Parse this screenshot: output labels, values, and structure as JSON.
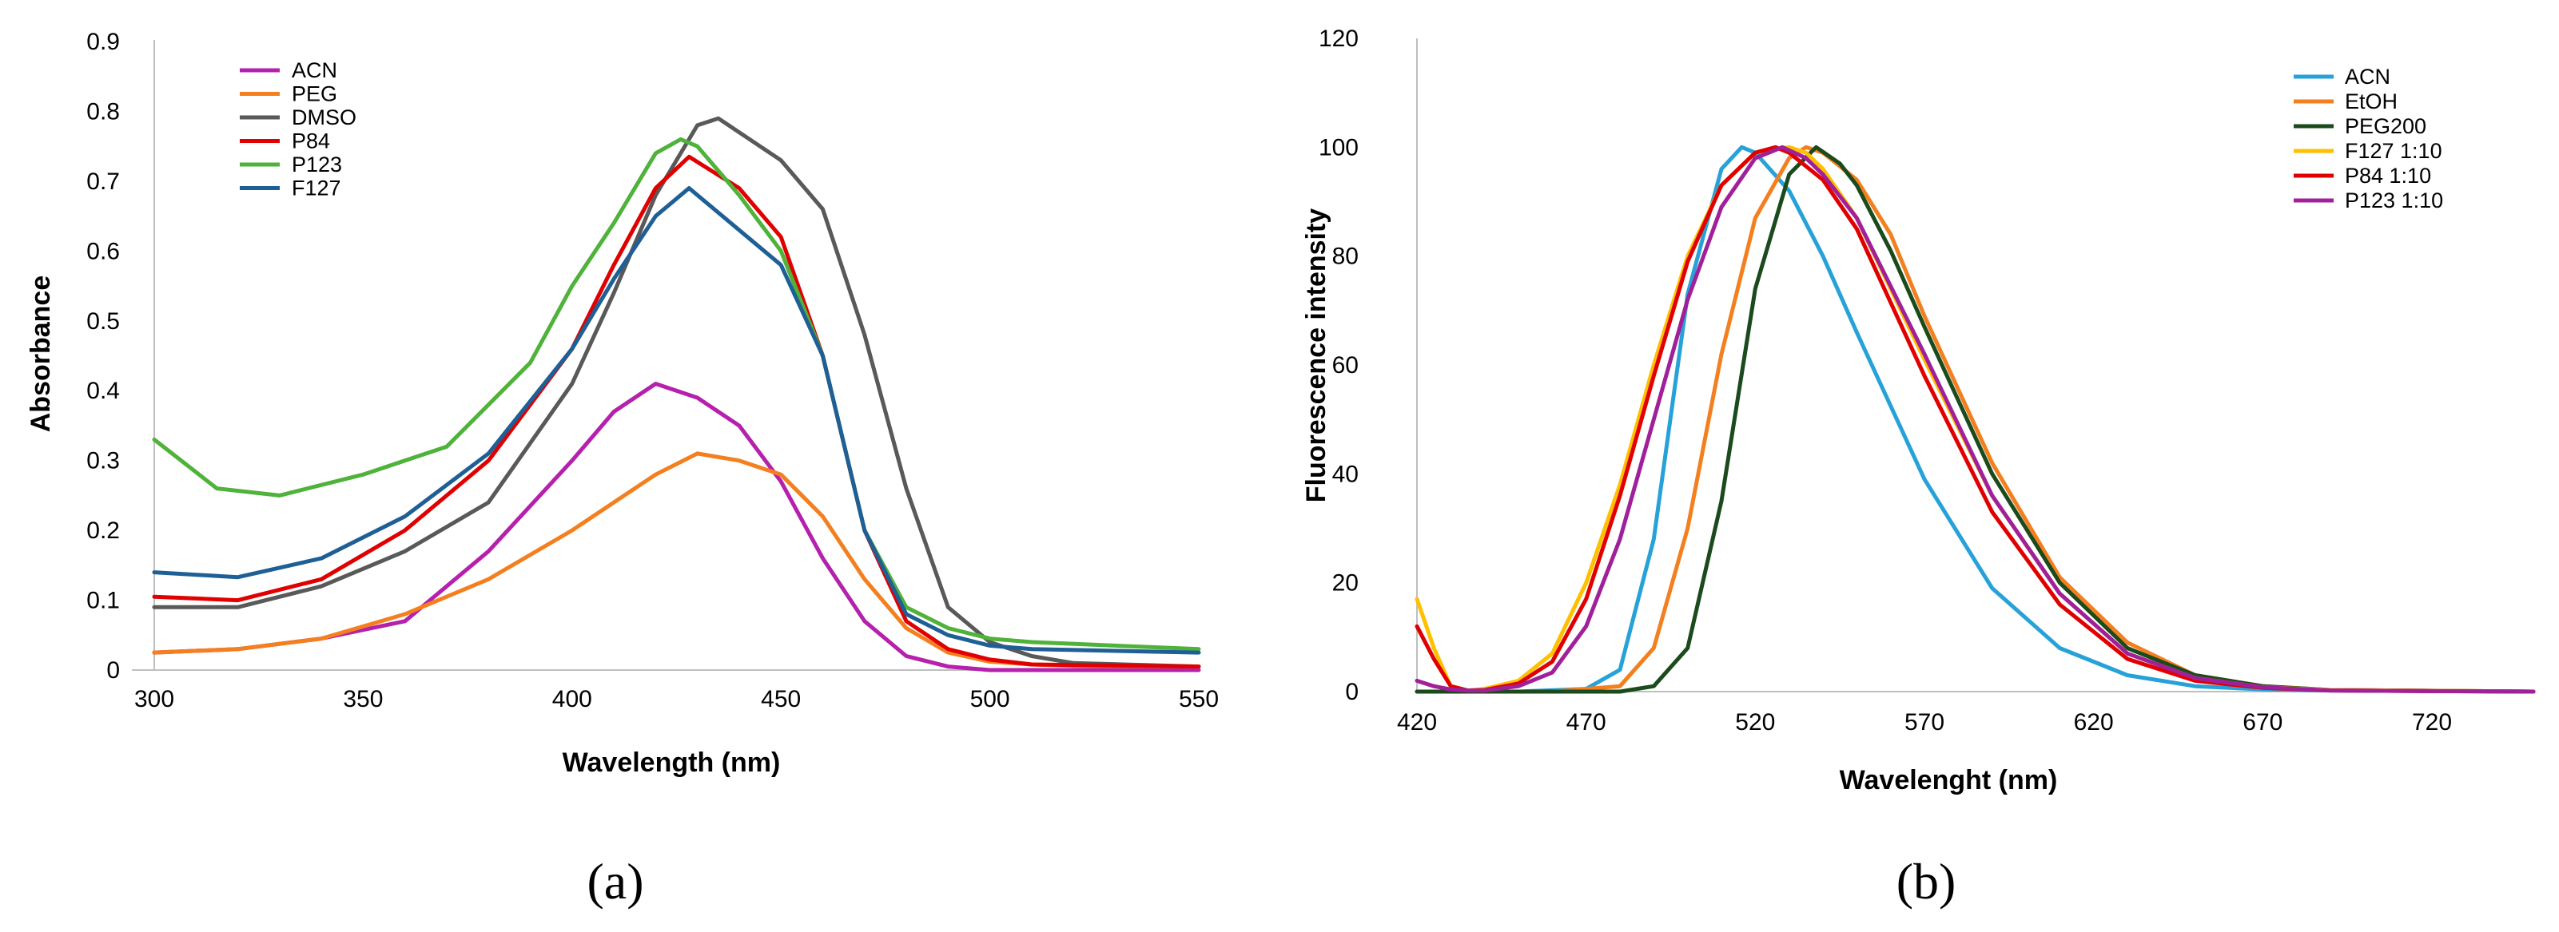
{
  "colors": {
    "purple": "#B520AC",
    "orange": "#F47F1F",
    "gray": "#595959",
    "red": "#E00000",
    "green": "#4FB23A",
    "blue": "#1E5F96",
    "lightblue": "#27A2D9",
    "darkgreen": "#1B4A1C",
    "yellow": "#FFC000",
    "magenta": "#A0209A"
  },
  "chart_data": [
    {
      "type": "line",
      "panel_label": "(a)",
      "title": "",
      "xlabel": "Wavelength (nm)",
      "ylabel": "Absorbance",
      "xlim": [
        300,
        550
      ],
      "ylim": [
        0,
        0.9
      ],
      "xticks": [
        300,
        350,
        400,
        450,
        500,
        550
      ],
      "yticks": [
        0,
        0.1,
        0.2,
        0.3,
        0.4,
        0.5,
        0.6,
        0.7,
        0.8,
        0.9
      ],
      "xtick_labels": [
        "300",
        "350",
        "400",
        "450",
        "500",
        "550"
      ],
      "ytick_labels": [
        "0",
        "0.1",
        "0.2",
        "0.3",
        "0.4",
        "0.5",
        "0.6",
        "0.7",
        "0.8",
        "0.9"
      ],
      "legend_position": "top-left",
      "series": [
        {
          "name": "ACN",
          "color": "#B520AC",
          "x": [
            300,
            320,
            340,
            360,
            380,
            400,
            410,
            420,
            430,
            440,
            450,
            460,
            470,
            480,
            490,
            500,
            510,
            550
          ],
          "y": [
            0.025,
            0.03,
            0.045,
            0.07,
            0.17,
            0.3,
            0.37,
            0.41,
            0.39,
            0.35,
            0.27,
            0.16,
            0.07,
            0.02,
            0.005,
            0.0,
            0.0,
            0.0
          ]
        },
        {
          "name": "PEG",
          "color": "#F47F1F",
          "x": [
            300,
            320,
            340,
            360,
            380,
            400,
            410,
            420,
            430,
            440,
            450,
            460,
            470,
            480,
            490,
            500,
            510,
            520,
            550
          ],
          "y": [
            0.025,
            0.03,
            0.045,
            0.08,
            0.13,
            0.2,
            0.24,
            0.28,
            0.31,
            0.3,
            0.28,
            0.22,
            0.13,
            0.06,
            0.025,
            0.012,
            0.008,
            0.006,
            0.005
          ]
        },
        {
          "name": "DMSO",
          "color": "#595959",
          "x": [
            300,
            320,
            340,
            360,
            380,
            400,
            410,
            420,
            430,
            435,
            440,
            450,
            460,
            470,
            480,
            490,
            500,
            510,
            520,
            550
          ],
          "y": [
            0.09,
            0.09,
            0.12,
            0.17,
            0.24,
            0.41,
            0.54,
            0.68,
            0.78,
            0.79,
            0.77,
            0.73,
            0.66,
            0.48,
            0.26,
            0.09,
            0.04,
            0.02,
            0.01,
            0.005
          ]
        },
        {
          "name": "P84",
          "color": "#E00000",
          "x": [
            300,
            320,
            340,
            360,
            380,
            400,
            410,
            420,
            428,
            440,
            450,
            460,
            470,
            480,
            490,
            500,
            510,
            550
          ],
          "y": [
            0.105,
            0.1,
            0.13,
            0.2,
            0.3,
            0.46,
            0.58,
            0.69,
            0.735,
            0.69,
            0.62,
            0.45,
            0.2,
            0.07,
            0.03,
            0.015,
            0.008,
            0.005
          ]
        },
        {
          "name": "P123",
          "color": "#4FB23A",
          "x": [
            300,
            315,
            330,
            350,
            370,
            390,
            400,
            410,
            420,
            426,
            430,
            440,
            450,
            460,
            470,
            480,
            490,
            500,
            510,
            550
          ],
          "y": [
            0.33,
            0.26,
            0.25,
            0.28,
            0.32,
            0.44,
            0.55,
            0.64,
            0.74,
            0.76,
            0.75,
            0.68,
            0.6,
            0.45,
            0.2,
            0.09,
            0.06,
            0.045,
            0.04,
            0.03
          ]
        },
        {
          "name": "F127",
          "color": "#1E5F96",
          "x": [
            300,
            320,
            340,
            360,
            380,
            400,
            410,
            420,
            428,
            440,
            450,
            460,
            470,
            480,
            490,
            500,
            510,
            550
          ],
          "y": [
            0.14,
            0.133,
            0.16,
            0.22,
            0.31,
            0.46,
            0.56,
            0.65,
            0.69,
            0.63,
            0.58,
            0.45,
            0.2,
            0.08,
            0.05,
            0.035,
            0.03,
            0.025
          ]
        }
      ]
    },
    {
      "type": "line",
      "panel_label": "(b)",
      "title": "",
      "xlabel": "Wavelenght (nm)",
      "ylabel": "Fluorescence intensity",
      "xlim": [
        420,
        750
      ],
      "ylim": [
        0,
        120
      ],
      "xticks": [
        420,
        470,
        520,
        570,
        620,
        670,
        720
      ],
      "yticks": [
        0,
        20,
        40,
        60,
        80,
        100,
        120
      ],
      "xtick_labels": [
        "420",
        "470",
        "520",
        "570",
        "620",
        "670",
        "720"
      ],
      "ytick_labels": [
        "0",
        "20",
        "40",
        "60",
        "80",
        "100",
        "120"
      ],
      "legend_position": "top-right",
      "series": [
        {
          "name": "ACN",
          "color": "#27A2D9",
          "x": [
            420,
            450,
            470,
            480,
            490,
            500,
            510,
            516,
            520,
            530,
            540,
            550,
            570,
            590,
            610,
            630,
            650,
            670,
            690,
            750
          ],
          "y": [
            0,
            0,
            0.5,
            4,
            28,
            73,
            96,
            100,
            99,
            92,
            80,
            66,
            39,
            19,
            8,
            3,
            1,
            0.4,
            0.2,
            0
          ]
        },
        {
          "name": "EtOH",
          "color": "#F47F1F",
          "x": [
            420,
            460,
            480,
            490,
            500,
            510,
            520,
            530,
            535,
            540,
            550,
            560,
            570,
            590,
            610,
            630,
            650,
            670,
            690,
            750
          ],
          "y": [
            0,
            0,
            1,
            8,
            30,
            62,
            87,
            98,
            100,
            99,
            94,
            84,
            69,
            42,
            21,
            9,
            3,
            1,
            0.3,
            0
          ]
        },
        {
          "name": "PEG200",
          "color": "#1B4A1C",
          "x": [
            420,
            480,
            490,
            500,
            510,
            520,
            530,
            538,
            545,
            550,
            560,
            570,
            590,
            610,
            630,
            650,
            670,
            690,
            750
          ],
          "y": [
            0,
            0,
            1,
            8,
            35,
            74,
            95,
            100,
            97,
            93,
            81,
            67,
            40,
            20,
            8,
            3,
            1,
            0.3,
            0
          ]
        },
        {
          "name": "F127 1:10",
          "color": "#FFC000",
          "x": [
            420,
            425,
            430,
            435,
            440,
            450,
            460,
            470,
            480,
            490,
            500,
            510,
            520,
            530,
            535,
            540,
            550,
            570,
            590,
            610,
            630,
            650,
            670,
            690,
            750
          ],
          "y": [
            17,
            8,
            1,
            0.2,
            0.5,
            2,
            7,
            20,
            38,
            60,
            80,
            93,
            99,
            100,
            99,
            96,
            87,
            61,
            36,
            18,
            7,
            2.5,
            0.8,
            0.3,
            0
          ]
        },
        {
          "name": "P84 1:10",
          "color": "#E00000",
          "x": [
            420,
            425,
            430,
            435,
            440,
            450,
            460,
            470,
            480,
            490,
            500,
            510,
            520,
            526,
            530,
            540,
            550,
            570,
            590,
            610,
            630,
            650,
            670,
            690,
            750
          ],
          "y": [
            12,
            6,
            1,
            0.2,
            0.3,
            1.5,
            5.5,
            17,
            36,
            58,
            79,
            93,
            99,
            100,
            99,
            94,
            85,
            58,
            33,
            16,
            6,
            2,
            0.7,
            0.2,
            0
          ]
        },
        {
          "name": "P123 1:10",
          "color": "#A0209A",
          "x": [
            420,
            425,
            430,
            435,
            440,
            450,
            460,
            470,
            480,
            490,
            500,
            510,
            520,
            528,
            535,
            540,
            550,
            570,
            590,
            610,
            630,
            650,
            670,
            690,
            750
          ],
          "y": [
            2,
            1,
            0.4,
            0.2,
            0.2,
            1,
            3.5,
            12,
            28,
            50,
            72,
            89,
            98,
            100,
            98,
            95,
            87,
            62,
            36,
            18,
            7,
            2.5,
            0.8,
            0.2,
            0
          ]
        }
      ]
    }
  ]
}
